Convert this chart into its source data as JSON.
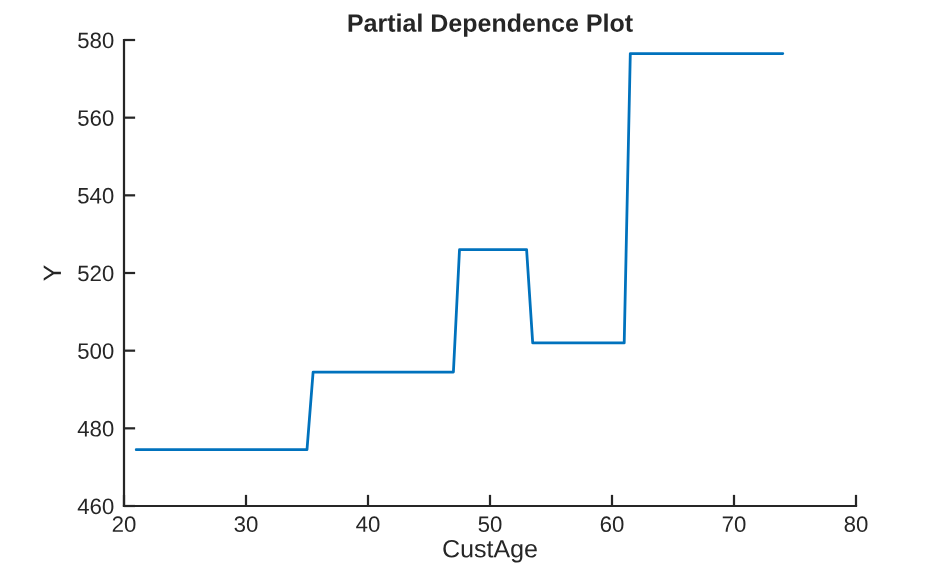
{
  "chart_data": {
    "type": "line",
    "title": "Partial Dependence Plot",
    "xlabel": "CustAge",
    "ylabel": "Y",
    "x": [
      21,
      35,
      35.5,
      47,
      47.5,
      53,
      53.5,
      61,
      61.5,
      74
    ],
    "series": [
      {
        "color": "#0072bd",
        "values": [
          474.5,
          474.5,
          494.5,
          494.5,
          526,
          526,
          502,
          502,
          576.5,
          576.5
        ]
      }
    ],
    "xlim": [
      20,
      80
    ],
    "xticks": [
      20,
      30,
      40,
      50,
      60,
      70,
      80
    ],
    "ylim": [
      460,
      580
    ],
    "yticks": [
      460,
      480,
      500,
      520,
      540,
      560,
      580
    ],
    "grid": false,
    "legend": false,
    "marker": "none",
    "line_style": "solid"
  }
}
